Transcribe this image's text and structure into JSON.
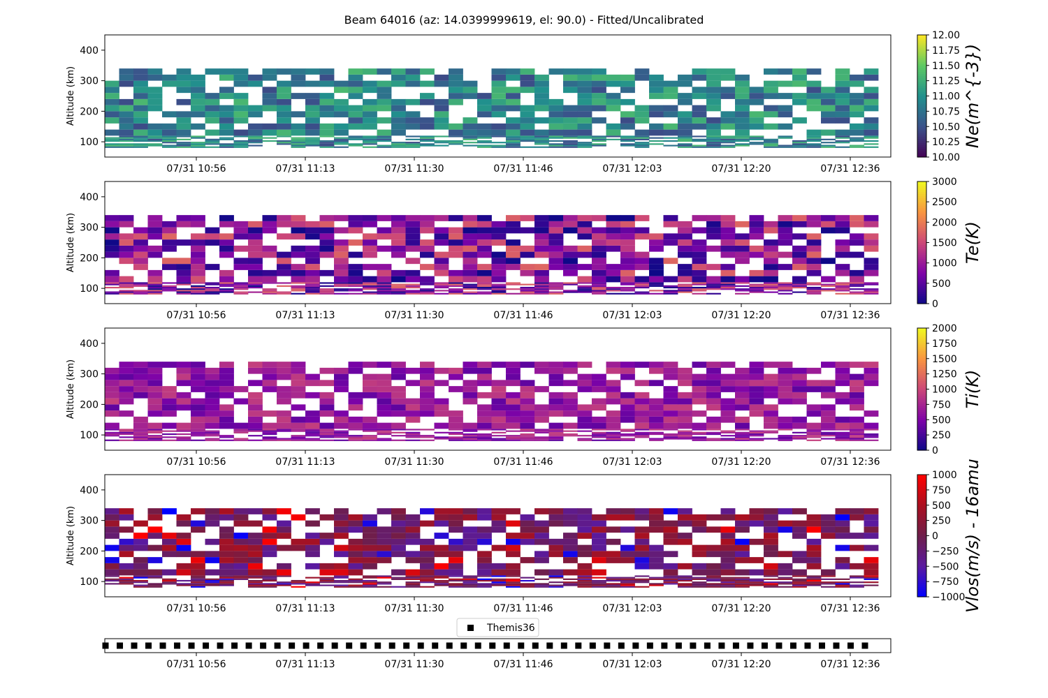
{
  "figure": {
    "title": "Beam 64016 (az: 14.0399999619, el: 90.0) - Fitted/Uncalibrated"
  },
  "chart_data": [
    {
      "type": "heatmap",
      "name": "Ne",
      "ylabel": "Altitude (km)",
      "ylim": [
        50,
        450
      ],
      "yticks": [
        100,
        200,
        300,
        400
      ],
      "xticks": [
        "07/31 10:56",
        "07/31 11:13",
        "07/31 11:30",
        "07/31 11:46",
        "07/31 12:03",
        "07/31 12:20",
        "07/31 12:36"
      ],
      "colorbar": {
        "label": "Ne(m^{-3})",
        "colormap": "viridis",
        "range": [
          10.0,
          12.0
        ],
        "ticks": [
          "10.00",
          "10.25",
          "10.50",
          "10.75",
          "11.00",
          "11.25",
          "11.50",
          "11.75",
          "12.00"
        ]
      },
      "typical_value": 10.9,
      "spread": 0.45
    },
    {
      "type": "heatmap",
      "name": "Te",
      "ylabel": "Altitude (km)",
      "ylim": [
        50,
        450
      ],
      "yticks": [
        100,
        200,
        300,
        400
      ],
      "xticks": [
        "07/31 10:56",
        "07/31 11:13",
        "07/31 11:30",
        "07/31 11:46",
        "07/31 12:03",
        "07/31 12:20",
        "07/31 12:36"
      ],
      "colorbar": {
        "label": "Te(K)",
        "colormap": "plasma",
        "range": [
          0,
          3000
        ],
        "ticks": [
          "0",
          "500",
          "1000",
          "1500",
          "2000",
          "2500",
          "3000"
        ]
      },
      "typical_value": 900,
      "spread": 900
    },
    {
      "type": "heatmap",
      "name": "Ti",
      "ylabel": "Altitude (km)",
      "ylim": [
        50,
        450
      ],
      "yticks": [
        100,
        200,
        300,
        400
      ],
      "xticks": [
        "07/31 10:56",
        "07/31 11:13",
        "07/31 11:30",
        "07/31 11:46",
        "07/31 12:03",
        "07/31 12:20",
        "07/31 12:36"
      ],
      "colorbar": {
        "label": "Ti(K)",
        "colormap": "plasma",
        "range": [
          0,
          2000
        ],
        "ticks": [
          "0",
          "250",
          "500",
          "750",
          "1000",
          "1250",
          "1500",
          "1750",
          "2000"
        ]
      },
      "typical_value": 650,
      "spread": 300
    },
    {
      "type": "heatmap",
      "name": "Vlos",
      "ylabel": "Altitude (km)",
      "ylim": [
        50,
        450
      ],
      "yticks": [
        100,
        200,
        300,
        400
      ],
      "xticks": [
        "07/31 10:56",
        "07/31 11:13",
        "07/31 11:30",
        "07/31 11:46",
        "07/31 12:03",
        "07/31 12:20",
        "07/31 12:36"
      ],
      "colorbar": {
        "label": "Vlos(m/s) - 16amu",
        "colormap": "bwr-dark",
        "range": [
          -1000,
          1000
        ],
        "ticks": [
          "−1000",
          "−750",
          "−500",
          "−250",
          "0",
          "250",
          "500",
          "750",
          "1000"
        ]
      },
      "typical_value": 0,
      "spread": 500
    },
    {
      "type": "scatter",
      "name": "Themis36",
      "legend": {
        "label": "Themis36",
        "placement": "top-center"
      },
      "xticks": [
        "07/31 10:56",
        "07/31 11:13",
        "07/31 11:30",
        "07/31 11:46",
        "07/31 12:03",
        "07/31 12:20",
        "07/31 12:36"
      ],
      "marker": "square",
      "marker_color": "#000000",
      "y": 0,
      "point_count": 54
    }
  ]
}
